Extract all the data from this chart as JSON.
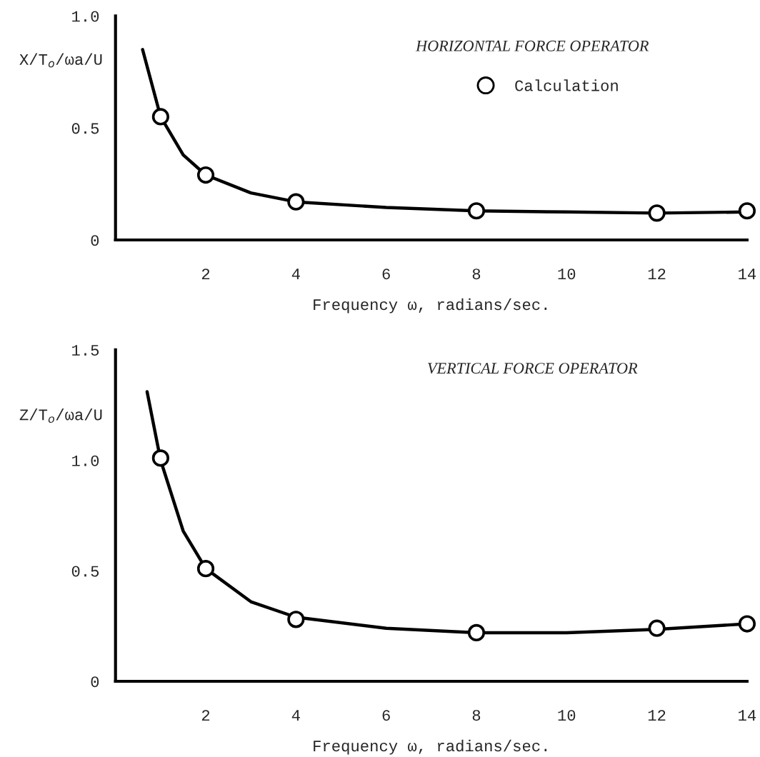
{
  "chart_data": [
    {
      "type": "scatter",
      "title": "HORIZONTAL FORCE OPERATOR",
      "xlabel": "Frequency ω, radians/sec.",
      "ylabel": "X/T$_{o}$/ωa/U",
      "series": [
        {
          "type": "line",
          "color": "#000000",
          "x": [
            0.6,
            1,
            1.5,
            2,
            3,
            4,
            6,
            8,
            10,
            12,
            14
          ],
          "values": [
            0.85,
            0.55,
            0.38,
            0.29,
            0.21,
            0.17,
            0.145,
            0.13,
            0.125,
            0.12,
            0.125
          ],
          "marker": "none"
        },
        {
          "name": "Calculation",
          "color": "#000000",
          "x": [
            1,
            2,
            4,
            8,
            12,
            14
          ],
          "values": [
            0.55,
            0.29,
            0.17,
            0.13,
            0.12,
            0.13
          ],
          "marker": "circle"
        }
      ],
      "xlim": [
        0,
        14
      ],
      "xticks": [
        2,
        4,
        6,
        8,
        10,
        12,
        14
      ],
      "ylim": [
        0,
        1
      ],
      "yticks": [
        0,
        0.5,
        {
          "value": 1,
          "label": "1.0"
        }
      ],
      "grid": false,
      "legend": "top right"
    },
    {
      "type": "scatter",
      "title": "VERTICAL FORCE OPERATOR",
      "xlabel": "Frequency ω, radians/sec.",
      "ylabel": "Z/T$_{o}$/ωa/U",
      "series": [
        {
          "type": "line",
          "color": "#000000",
          "x": [
            0.7,
            1,
            1.5,
            2,
            3,
            4,
            6,
            8,
            10,
            12,
            14
          ],
          "values": [
            1.31,
            1.0,
            0.68,
            0.51,
            0.36,
            0.29,
            0.24,
            0.22,
            0.22,
            0.235,
            0.26
          ],
          "marker": "none"
        },
        {
          "color": "#000000",
          "x": [
            1,
            2,
            4,
            8,
            12,
            14
          ],
          "values": [
            1.01,
            0.51,
            0.28,
            0.22,
            0.24,
            0.26
          ],
          "marker": "circle"
        }
      ],
      "xlim": [
        0,
        14
      ],
      "xticks": [
        2,
        4,
        6,
        8,
        10,
        12,
        14
      ],
      "ylim": [
        0,
        1.5
      ],
      "yticks": [
        0,
        0.5,
        {
          "value": 1,
          "label": "1.0"
        },
        1.5
      ],
      "grid": false
    }
  ]
}
